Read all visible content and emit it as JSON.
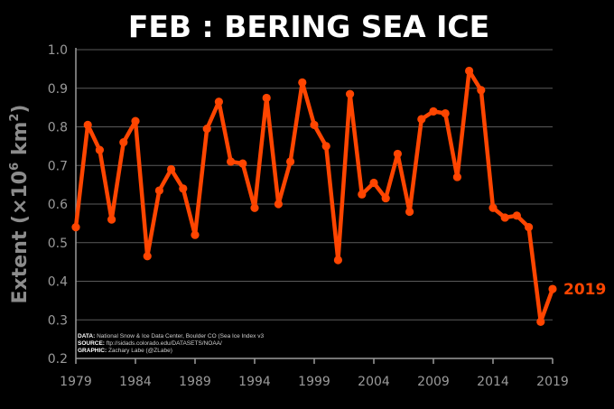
{
  "chart_data": {
    "type": "line",
    "title": "FEB : BERING SEA ICE",
    "ylabel_main": "Extent (×10",
    "ylabel_sup": "6",
    "ylabel_unit": " km",
    "ylabel_sup2": "2",
    "ylabel_close": ")",
    "xlim": [
      1979,
      2019
    ],
    "ylim": [
      0.2,
      1.0
    ],
    "x_ticks": [
      "1979",
      "1984",
      "1989",
      "1994",
      "1999",
      "2004",
      "2009",
      "2014",
      "2019"
    ],
    "y_ticks": [
      "0.2",
      "0.3",
      "0.4",
      "0.5",
      "0.6",
      "0.7",
      "0.8",
      "0.9",
      "1.0"
    ],
    "grid": true,
    "line_color": "#ff4500",
    "annotation": "2019",
    "series": [
      {
        "x": [
          1979,
          1980,
          1981,
          1982,
          1983,
          1984,
          1985,
          1986,
          1987,
          1988,
          1989,
          1990,
          1991,
          1992,
          1993,
          1994,
          1995,
          1996,
          1997,
          1998,
          1999,
          2000,
          2001,
          2002,
          2003,
          2004,
          2005,
          2006,
          2007,
          2008,
          2009,
          2010,
          2011,
          2012,
          2013,
          2014,
          2015,
          2016,
          2017,
          2018,
          2019
        ],
        "values": [
          0.54,
          0.805,
          0.74,
          0.56,
          0.76,
          0.815,
          0.465,
          0.635,
          0.69,
          0.64,
          0.52,
          0.795,
          0.865,
          0.71,
          0.705,
          0.59,
          0.875,
          0.6,
          0.71,
          0.915,
          0.805,
          0.75,
          0.455,
          0.885,
          0.625,
          0.655,
          0.615,
          0.73,
          0.58,
          0.82,
          0.84,
          0.835,
          0.67,
          0.945,
          0.895,
          0.59,
          0.565,
          0.57,
          0.54,
          0.295,
          0.38
        ]
      }
    ]
  },
  "credits": {
    "data_key": "DATA:",
    "data_text": "National Snow & Ice Data Center, Boulder CO (Sea Ice Index v3",
    "source_key": "SOURCE:",
    "source_text": "ftp://sidads.colorado.edu/DATASETS/NOAA/",
    "graphic_key": "GRAPHIC:",
    "graphic_text": "Zachary Labe (@ZLabe)"
  }
}
